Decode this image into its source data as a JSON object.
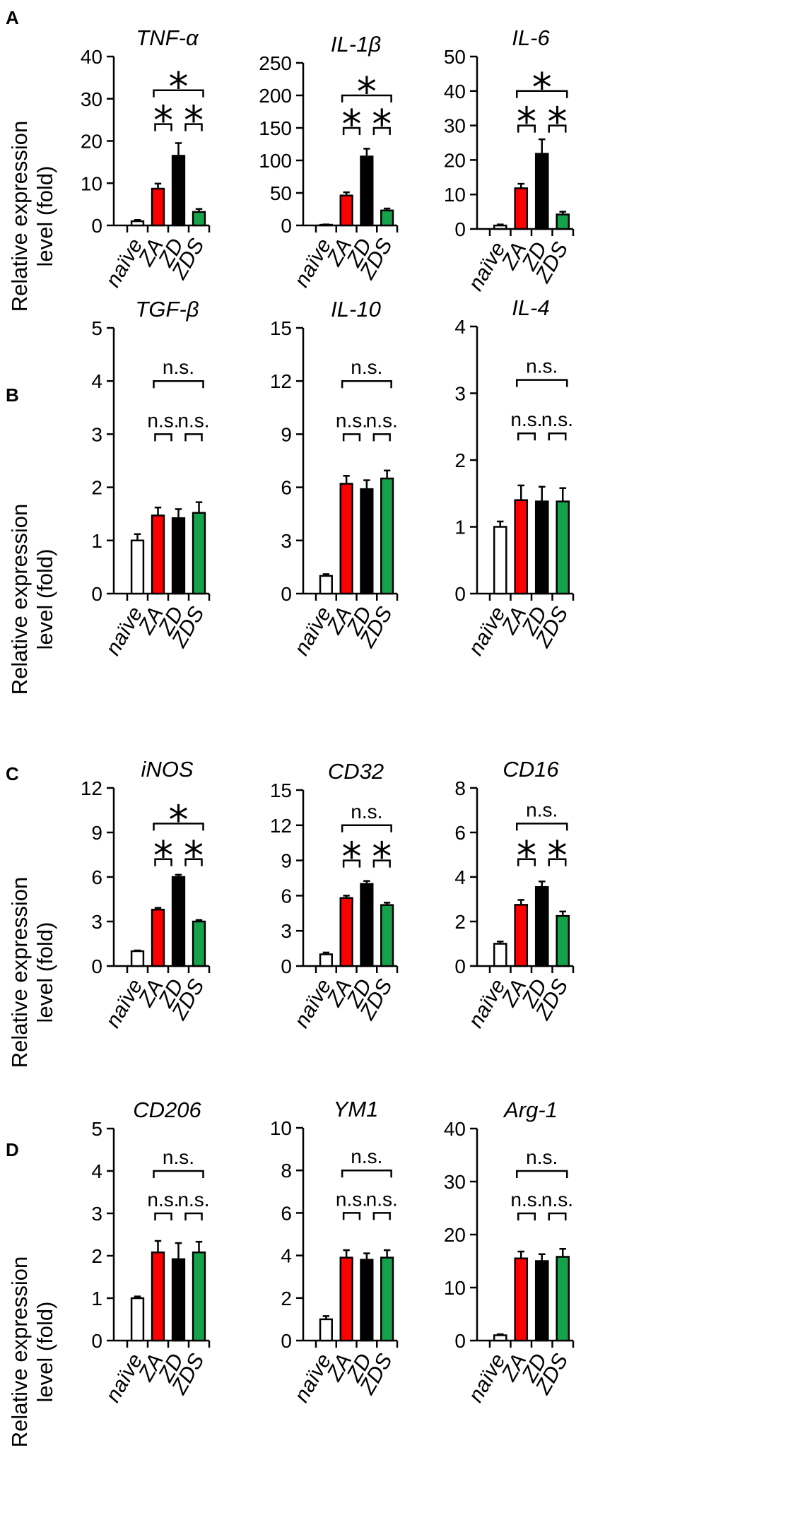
{
  "panel_labels": [
    "A",
    "B",
    "C",
    "D"
  ],
  "ylabel_line1": "Relative expression",
  "ylabel_line2": "level (fold)",
  "categories": [
    "naïve",
    "ZA",
    "ZD",
    "ZDS"
  ],
  "colors": {
    "naive_fill": "#ffffff",
    "ZA": "#ff0000",
    "ZD": "#000000",
    "ZDS": "#14a34a",
    "outline": "#000000"
  },
  "chart_data": [
    {
      "type": "bar",
      "panel": "A",
      "title": "TNF-α",
      "ylim": [
        0,
        40
      ],
      "yticks": [
        "0",
        "10",
        "20",
        "30",
        "40"
      ],
      "categories": [
        "naïve",
        "ZA",
        "ZD",
        "ZDS"
      ],
      "values": [
        1,
        8.7,
        16.5,
        3.2
      ],
      "errors": [
        0.3,
        1.2,
        3.0,
        0.7
      ],
      "brackets": [
        {
          "from": 1,
          "to": 2,
          "label": "*"
        },
        {
          "from": 2,
          "to": 3,
          "label": "*"
        },
        {
          "from": 1,
          "to": 3,
          "label": "*"
        }
      ]
    },
    {
      "type": "bar",
      "panel": "A",
      "title": "IL-1β",
      "ylim": [
        0,
        250
      ],
      "yticks": [
        "0",
        "50",
        "100",
        "150",
        "200",
        "250"
      ],
      "categories": [
        "naïve",
        "ZA",
        "ZD",
        "ZDS"
      ],
      "values": [
        1,
        46,
        106,
        23
      ],
      "errors": [
        0.5,
        5,
        12,
        3
      ],
      "brackets": [
        {
          "from": 1,
          "to": 2,
          "label": "*"
        },
        {
          "from": 2,
          "to": 3,
          "label": "*"
        },
        {
          "from": 1,
          "to": 3,
          "label": "*"
        }
      ]
    },
    {
      "type": "bar",
      "panel": "A",
      "title": "IL-6",
      "ylim": [
        0,
        50
      ],
      "yticks": [
        "0",
        "10",
        "20",
        "30",
        "40",
        "50"
      ],
      "categories": [
        "naïve",
        "ZA",
        "ZD",
        "ZDS"
      ],
      "values": [
        1,
        11.8,
        21.8,
        4.2
      ],
      "errors": [
        0.3,
        1.3,
        4.2,
        0.8
      ],
      "brackets": [
        {
          "from": 1,
          "to": 2,
          "label": "*"
        },
        {
          "from": 2,
          "to": 3,
          "label": "*"
        },
        {
          "from": 1,
          "to": 3,
          "label": "*"
        }
      ]
    },
    {
      "type": "bar",
      "panel": "B",
      "title": "TGF-β",
      "ylim": [
        0,
        5
      ],
      "yticks": [
        "0",
        "1",
        "2",
        "3",
        "4",
        "5"
      ],
      "categories": [
        "naïve",
        "ZA",
        "ZD",
        "ZDS"
      ],
      "values": [
        1,
        1.47,
        1.42,
        1.52
      ],
      "errors": [
        0.12,
        0.15,
        0.17,
        0.2
      ],
      "brackets": [
        {
          "from": 1,
          "to": 2,
          "label": "n.s."
        },
        {
          "from": 2,
          "to": 3,
          "label": "n.s."
        },
        {
          "from": 1,
          "to": 3,
          "label": "n.s."
        }
      ]
    },
    {
      "type": "bar",
      "panel": "B",
      "title": "IL-10",
      "ylim": [
        0,
        15
      ],
      "yticks": [
        "0",
        "3",
        "6",
        "9",
        "12",
        "15"
      ],
      "categories": [
        "naïve",
        "ZA",
        "ZD",
        "ZDS"
      ],
      "values": [
        1,
        6.2,
        5.9,
        6.5
      ],
      "errors": [
        0.1,
        0.45,
        0.5,
        0.45
      ],
      "brackets": [
        {
          "from": 1,
          "to": 2,
          "label": "n.s."
        },
        {
          "from": 2,
          "to": 3,
          "label": "n.s."
        },
        {
          "from": 1,
          "to": 3,
          "label": "n.s."
        }
      ]
    },
    {
      "type": "bar",
      "panel": "B",
      "title": "IL-4",
      "ylim": [
        0,
        4
      ],
      "yticks": [
        "0",
        "1",
        "2",
        "3",
        "4"
      ],
      "categories": [
        "naïve",
        "ZA",
        "ZD",
        "ZDS"
      ],
      "values": [
        1,
        1.4,
        1.38,
        1.38
      ],
      "errors": [
        0.08,
        0.22,
        0.22,
        0.2
      ],
      "brackets": [
        {
          "from": 1,
          "to": 2,
          "label": "n.s."
        },
        {
          "from": 2,
          "to": 3,
          "label": "n.s."
        },
        {
          "from": 1,
          "to": 3,
          "label": "n.s."
        }
      ]
    },
    {
      "type": "bar",
      "panel": "C",
      "title": "iNOS",
      "ylim": [
        0,
        12
      ],
      "yticks": [
        "0",
        "3",
        "6",
        "9",
        "12"
      ],
      "categories": [
        "naïve",
        "ZA",
        "ZD",
        "ZDS"
      ],
      "values": [
        1,
        3.8,
        6,
        3
      ],
      "errors": [
        0.05,
        0.12,
        0.15,
        0.1
      ],
      "brackets": [
        {
          "from": 1,
          "to": 2,
          "label": "*"
        },
        {
          "from": 2,
          "to": 3,
          "label": "*"
        },
        {
          "from": 1,
          "to": 3,
          "label": "*"
        }
      ]
    },
    {
      "type": "bar",
      "panel": "C",
      "title": "CD32",
      "ylim": [
        0,
        15
      ],
      "yticks": [
        "0",
        "3",
        "6",
        "9",
        "12",
        "15"
      ],
      "categories": [
        "naïve",
        "ZA",
        "ZD",
        "ZDS"
      ],
      "values": [
        1,
        5.8,
        7,
        5.2
      ],
      "errors": [
        0.15,
        0.2,
        0.25,
        0.2
      ],
      "brackets": [
        {
          "from": 1,
          "to": 2,
          "label": "*"
        },
        {
          "from": 2,
          "to": 3,
          "label": "*"
        },
        {
          "from": 1,
          "to": 3,
          "label": "n.s."
        }
      ]
    },
    {
      "type": "bar",
      "panel": "C",
      "title": "CD16",
      "ylim": [
        0,
        8
      ],
      "yticks": [
        "0",
        "2",
        "4",
        "6",
        "8"
      ],
      "categories": [
        "naïve",
        "ZA",
        "ZD",
        "ZDS"
      ],
      "values": [
        1,
        2.75,
        3.55,
        2.25
      ],
      "errors": [
        0.1,
        0.22,
        0.25,
        0.2
      ],
      "brackets": [
        {
          "from": 1,
          "to": 2,
          "label": "*"
        },
        {
          "from": 2,
          "to": 3,
          "label": "*"
        },
        {
          "from": 1,
          "to": 3,
          "label": "n.s."
        }
      ]
    },
    {
      "type": "bar",
      "panel": "D",
      "title": "CD206",
      "ylim": [
        0,
        5
      ],
      "yticks": [
        "0",
        "1",
        "2",
        "3",
        "4",
        "5"
      ],
      "categories": [
        "naïve",
        "ZA",
        "ZD",
        "ZDS"
      ],
      "values": [
        1,
        2.08,
        1.92,
        2.08
      ],
      "errors": [
        0.04,
        0.27,
        0.38,
        0.25
      ],
      "brackets": [
        {
          "from": 1,
          "to": 2,
          "label": "n.s."
        },
        {
          "from": 2,
          "to": 3,
          "label": "n.s."
        },
        {
          "from": 1,
          "to": 3,
          "label": "n.s."
        }
      ]
    },
    {
      "type": "bar",
      "panel": "D",
      "title": "YM1",
      "ylim": [
        0,
        10
      ],
      "yticks": [
        "0",
        "2",
        "4",
        "6",
        "8",
        "10"
      ],
      "categories": [
        "naïve",
        "ZA",
        "ZD",
        "ZDS"
      ],
      "values": [
        1,
        3.9,
        3.8,
        3.9
      ],
      "errors": [
        0.15,
        0.35,
        0.3,
        0.35
      ],
      "brackets": [
        {
          "from": 1,
          "to": 2,
          "label": "n.s."
        },
        {
          "from": 2,
          "to": 3,
          "label": "n.s."
        },
        {
          "from": 1,
          "to": 3,
          "label": "n.s."
        }
      ]
    },
    {
      "type": "bar",
      "panel": "D",
      "title": "Arg-1",
      "ylim": [
        0,
        40
      ],
      "yticks": [
        "0",
        "10",
        "20",
        "30",
        "40"
      ],
      "categories": [
        "naïve",
        "ZA",
        "ZD",
        "ZDS"
      ],
      "values": [
        1,
        15.5,
        15,
        15.8
      ],
      "errors": [
        0.2,
        1.3,
        1.3,
        1.5
      ],
      "brackets": [
        {
          "from": 1,
          "to": 2,
          "label": "n.s."
        },
        {
          "from": 2,
          "to": 3,
          "label": "n.s."
        },
        {
          "from": 1,
          "to": 3,
          "label": "n.s."
        }
      ]
    }
  ]
}
